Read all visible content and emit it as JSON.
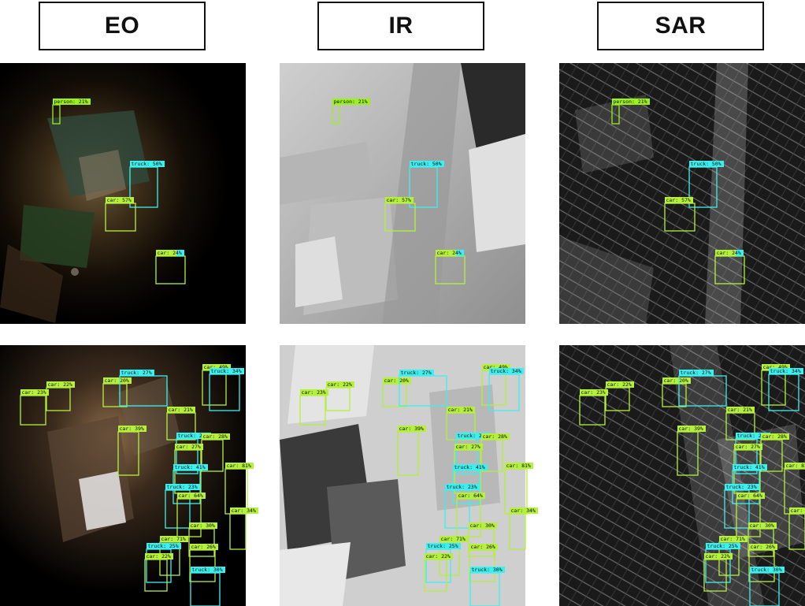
{
  "headers": {
    "eo": "EO",
    "ir": "IR",
    "sar": "SAR"
  },
  "colors": {
    "person": "#9cf01e",
    "car": "#b4f03c",
    "truck": "#3cf0ef",
    "header_border": "#111111"
  },
  "detections": {
    "row1": [
      {
        "label": "person: 21%",
        "cls": "person"
      },
      {
        "label": "truck: 50%",
        "cls": "truck"
      },
      {
        "label": "car: 57%",
        "cls": "car"
      },
      {
        "label": "car: 24%",
        "cls": "car2"
      }
    ],
    "row2": [
      {
        "label": "car: 23%",
        "cls": "car"
      },
      {
        "label": "car: 22%",
        "cls": "car"
      },
      {
        "label": "car: 20%",
        "cls": "car"
      },
      {
        "label": "truck: 27%",
        "cls": "truck"
      },
      {
        "label": "car: 49%",
        "cls": "car"
      },
      {
        "label": "truck: 34%",
        "cls": "truck"
      },
      {
        "label": "car: 21%",
        "cls": "car"
      },
      {
        "label": "car: 39%",
        "cls": "car"
      },
      {
        "label": "truck: 28%",
        "cls": "truck"
      },
      {
        "label": "car: 28%",
        "cls": "car"
      },
      {
        "label": "car: 27%",
        "cls": "car"
      },
      {
        "label": "truck: 41%",
        "cls": "truck"
      },
      {
        "label": "car: 81%",
        "cls": "car"
      },
      {
        "label": "car: 34%",
        "cls": "car"
      },
      {
        "label": "truck: 23%",
        "cls": "truck"
      },
      {
        "label": "car: 64%",
        "cls": "car"
      },
      {
        "label": "car: 30%",
        "cls": "car"
      },
      {
        "label": "car: 71%",
        "cls": "car"
      },
      {
        "label": "truck: 25%",
        "cls": "truck"
      },
      {
        "label": "car: 26%",
        "cls": "car"
      },
      {
        "label": "car: 22%",
        "cls": "car"
      },
      {
        "label": "truck: 30%",
        "cls": "truck"
      }
    ]
  }
}
